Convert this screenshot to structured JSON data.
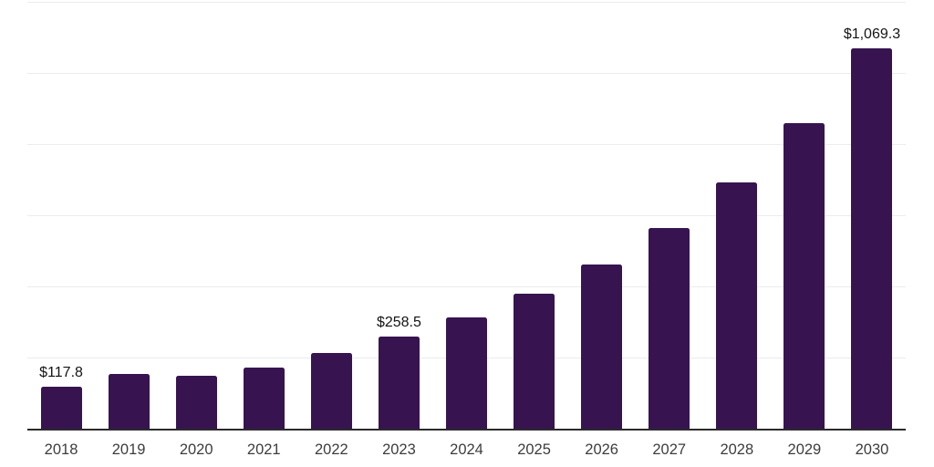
{
  "chart_data": {
    "type": "bar",
    "title": "",
    "xlabel": "",
    "ylabel": "",
    "categories": [
      "2018",
      "2019",
      "2020",
      "2021",
      "2022",
      "2023",
      "2024",
      "2025",
      "2026",
      "2027",
      "2028",
      "2029",
      "2030"
    ],
    "values": [
      117.8,
      154.1,
      148.5,
      171.6,
      214.0,
      258.5,
      312.1,
      378.7,
      460.3,
      563.0,
      693.3,
      859.6,
      1069.3
    ],
    "data_labels": [
      {
        "index": 0,
        "text": "$117.8"
      },
      {
        "index": 5,
        "text": "$258.5"
      },
      {
        "index": 12,
        "text": "$1,069.3"
      }
    ],
    "ylim": [
      0,
      1200
    ],
    "grid": {
      "horizontal": true,
      "step": 200
    },
    "y_tick_labels": "hidden",
    "legend": "none",
    "colors": {
      "bar": "#371450",
      "gridline": "#ececec",
      "axis": "#2b2b2b",
      "data_label": "#141414",
      "tick_label": "#3d3d3d",
      "background": "#ffffff"
    }
  }
}
